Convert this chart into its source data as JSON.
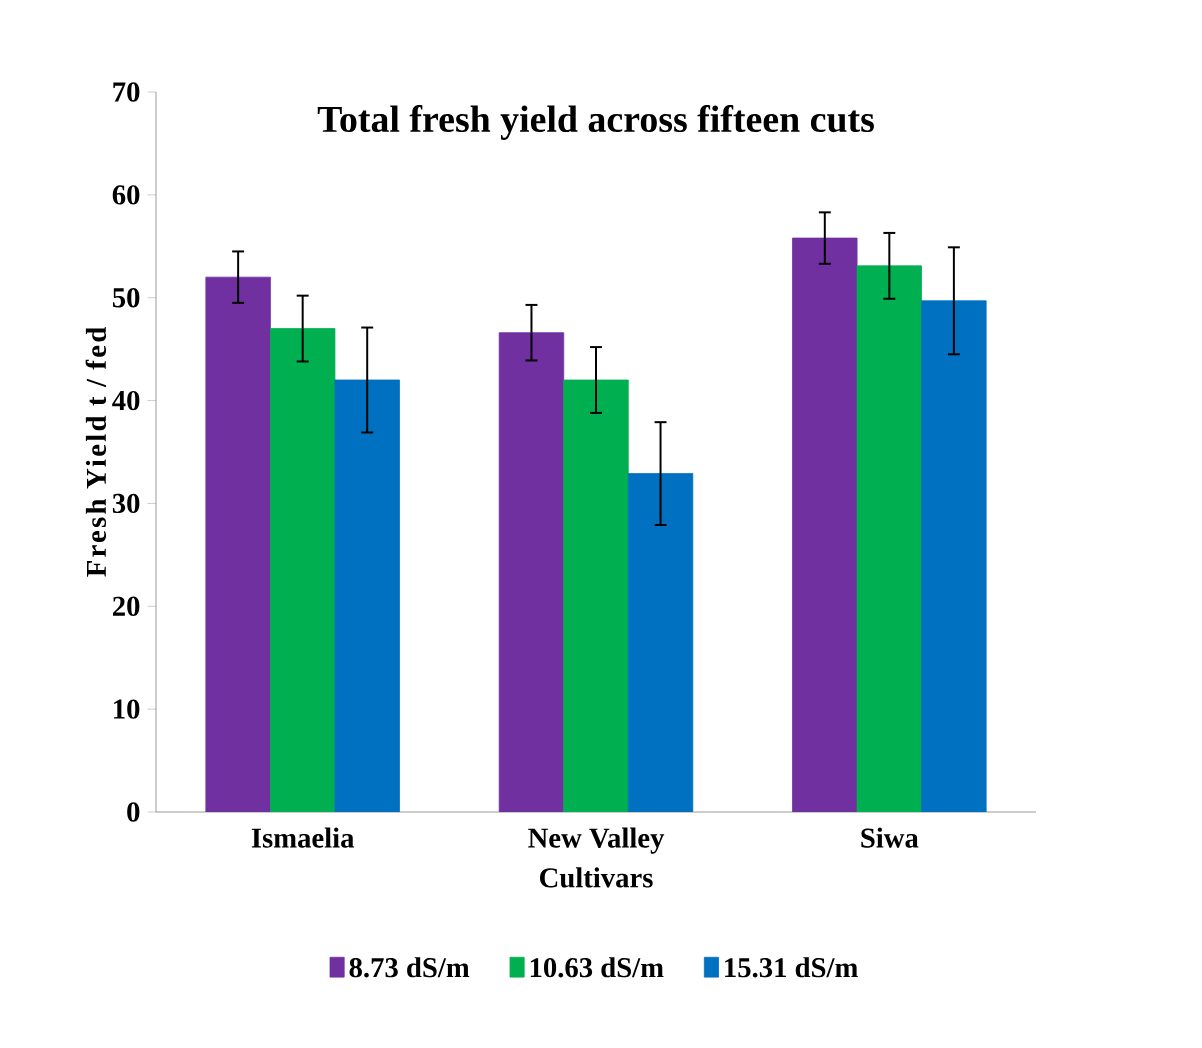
{
  "chart_data": {
    "type": "bar",
    "title": "Total fresh yield across fifteen cuts",
    "xlabel": "Cultivars",
    "ylabel": "Fresh Yield  t / fed",
    "categories": [
      "Ismaelia",
      "New Valley",
      "Siwa"
    ],
    "series": [
      {
        "name": "8.73 dS/m",
        "color": "#7030a0",
        "values": [
          52,
          46.6,
          55.8
        ],
        "errors": [
          2.5,
          2.7,
          2.5
        ]
      },
      {
        "name": "10.63 dS/m",
        "color": "#00b050",
        "values": [
          47,
          42,
          53.1
        ],
        "errors": [
          3.2,
          3.2,
          3.2
        ]
      },
      {
        "name": "15.31 dS/m",
        "color": "#0070c0",
        "values": [
          42,
          32.9,
          49.7
        ],
        "errors": [
          5.1,
          5,
          5.2
        ]
      }
    ],
    "ylim": [
      0,
      70
    ],
    "yticks": [
      0,
      10,
      20,
      30,
      40,
      50,
      60,
      70
    ],
    "grid": false,
    "legend": "bottom"
  }
}
